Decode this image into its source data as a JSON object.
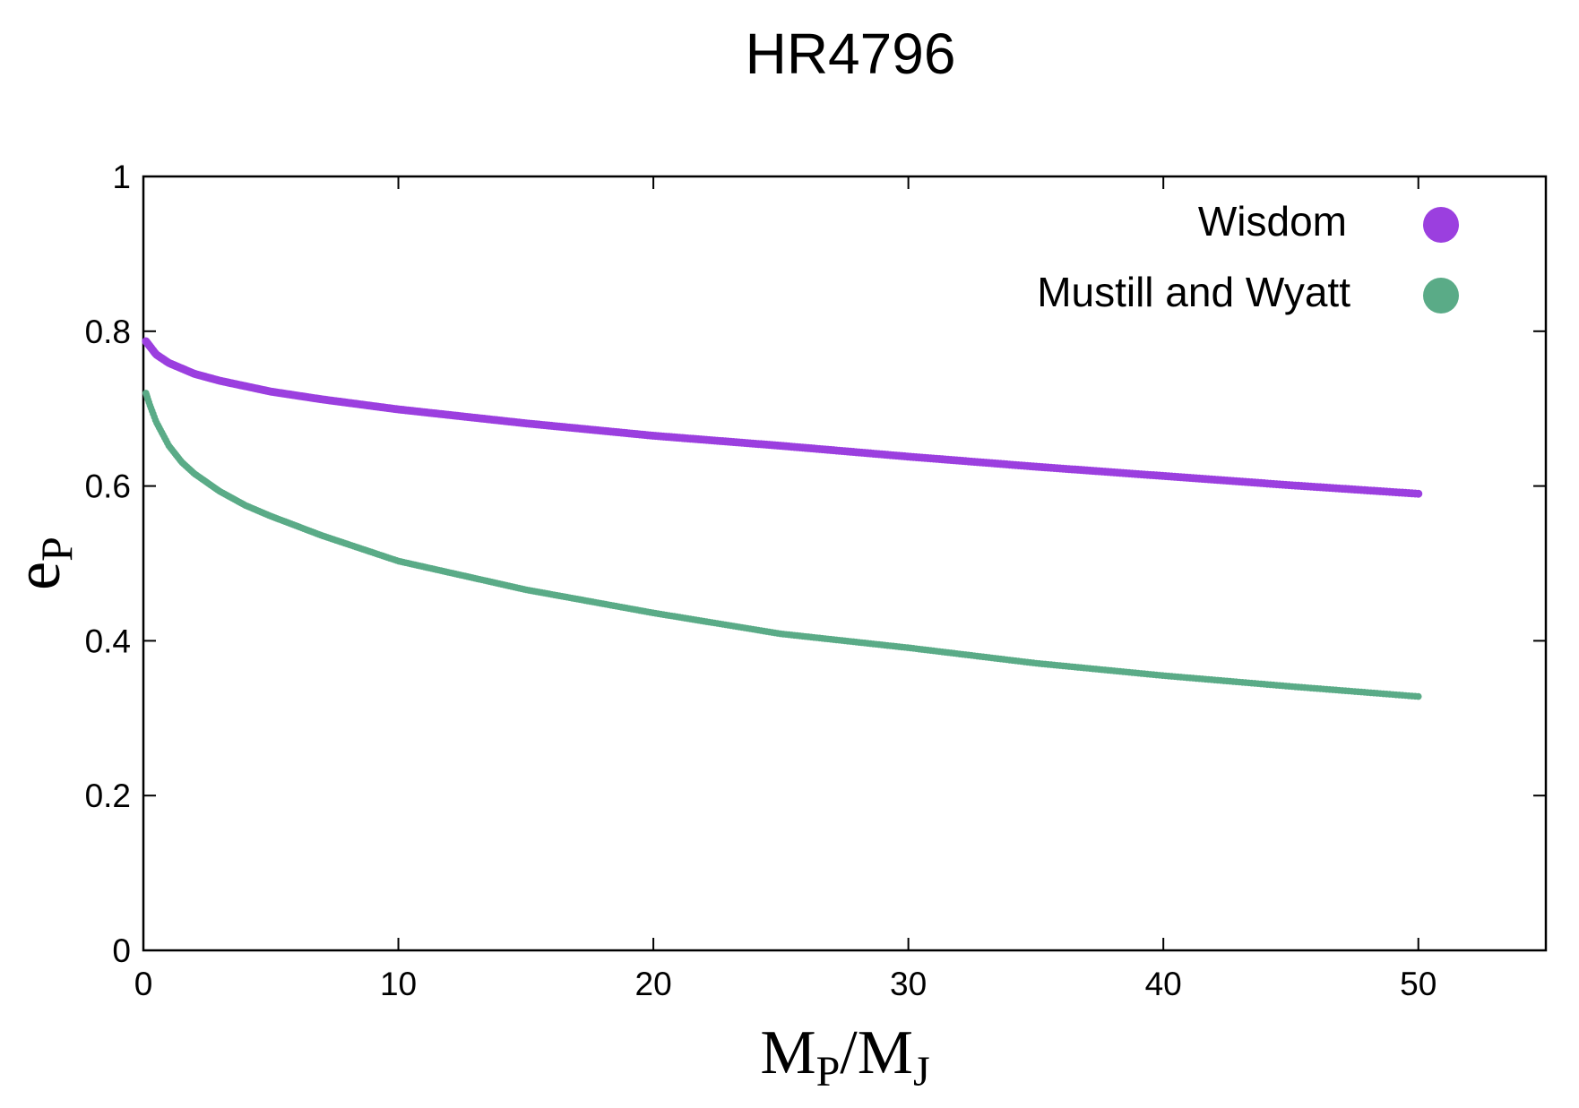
{
  "chart_data": {
    "type": "scatter",
    "title": "HR4796",
    "xlabel": {
      "main": "M",
      "sub1": "P",
      "slash": "/M",
      "sub2": "J"
    },
    "ylabel": {
      "main": "e",
      "sub": "P"
    },
    "xlim": [
      0,
      55
    ],
    "ylim": [
      0,
      1
    ],
    "xticks": [
      0,
      10,
      20,
      30,
      40,
      50
    ],
    "yticks": [
      0,
      0.2,
      0.4,
      0.6,
      0.8,
      1
    ],
    "xtick_labels": [
      "0",
      "10",
      "20",
      "30",
      "40",
      "50"
    ],
    "ytick_labels": [
      "0",
      "0.2",
      "0.4",
      "0.6",
      "0.8",
      "1"
    ],
    "grid": false,
    "legend_position": "top-right",
    "x_range_of_points": [
      0.1,
      50
    ],
    "series": [
      {
        "name": "Wisdom",
        "color": "#9b3fdf",
        "x": [
          0.1,
          0.5,
          1,
          2,
          3,
          5,
          7,
          10,
          15,
          20,
          25,
          30,
          35,
          40,
          45,
          50
        ],
        "y": [
          0.787,
          0.77,
          0.759,
          0.745,
          0.736,
          0.722,
          0.712,
          0.699,
          0.681,
          0.665,
          0.652,
          0.638,
          0.625,
          0.613,
          0.601,
          0.59
        ]
      },
      {
        "name": "Mustill and Wyatt",
        "color": "#5aab87",
        "x": [
          0.1,
          0.25,
          0.5,
          1,
          1.5,
          2,
          3,
          4,
          5,
          7,
          10,
          15,
          20,
          25,
          30,
          35,
          40,
          45,
          50
        ],
        "y": [
          0.72,
          0.705,
          0.683,
          0.652,
          0.631,
          0.616,
          0.593,
          0.575,
          0.561,
          0.536,
          0.503,
          0.466,
          0.436,
          0.409,
          0.391,
          0.371,
          0.355,
          0.341,
          0.328
        ]
      }
    ]
  }
}
